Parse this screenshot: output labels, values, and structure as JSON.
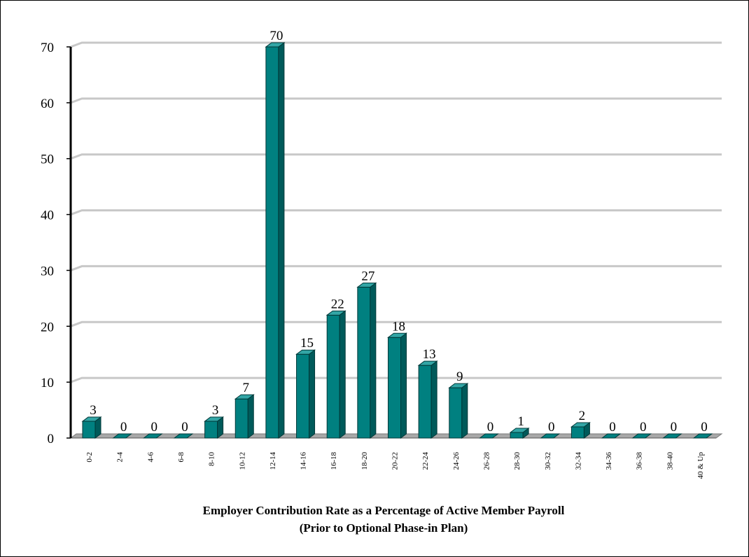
{
  "chart_data": {
    "type": "bar",
    "categories": [
      "0-2",
      "2-4",
      "4-6",
      "6-8",
      "8-10",
      "10-12",
      "12-14",
      "14-16",
      "16-18",
      "18-20",
      "20-22",
      "22-24",
      "24-26",
      "26-28",
      "28-30",
      "30-32",
      "32-34",
      "34-36",
      "36-38",
      "38-40",
      "40 & Up"
    ],
    "values": [
      3,
      0,
      0,
      0,
      3,
      7,
      70,
      15,
      22,
      27,
      18,
      13,
      9,
      0,
      1,
      0,
      2,
      0,
      0,
      0,
      0
    ],
    "title": "Employer Contribution Rate as a Percentage of Active Member Payroll",
    "subtitle": "(Prior to Optional Phase-in Plan)",
    "xlabel": "",
    "ylabel": "",
    "ylim": [
      0,
      70
    ],
    "yticks": [
      0,
      10,
      20,
      30,
      40,
      50,
      60,
      70
    ],
    "grid": true,
    "legend": "none",
    "three_d": true,
    "colors": {
      "bar_front": "#008080",
      "bar_side": "#005a5a",
      "bar_top": "#33a6a6",
      "bar_outline": "#003838",
      "gridline": "#c8c8c8",
      "floor": "#a8a8a8",
      "axis": "#000000"
    }
  }
}
